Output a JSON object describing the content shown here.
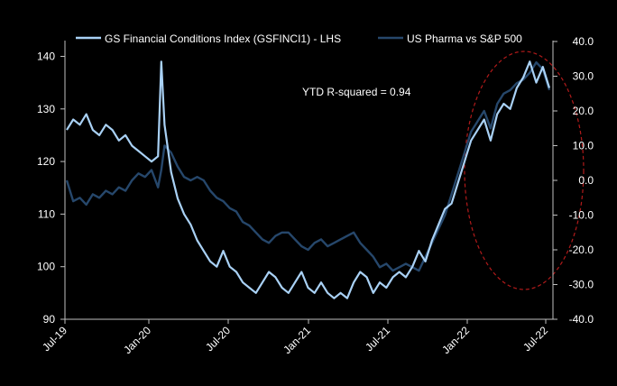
{
  "chart_data": {
    "type": "line",
    "title": "",
    "annotation": "YTD R-squared = 0.94",
    "x_ticks": [
      "Jul-19",
      "Jan-20",
      "Jul-20",
      "Jan-21",
      "Jul-21",
      "Jan-22",
      "Jul-22"
    ],
    "left_axis": {
      "ticks": [
        "90",
        "100",
        "110",
        "120",
        "130",
        "140"
      ],
      "ylim": [
        90,
        143
      ]
    },
    "right_axis": {
      "ticks": [
        "-40.0",
        "-30.0",
        "-20.0",
        "-10.0",
        "0.0",
        "10.0",
        "20.0",
        "30.0",
        "40.0"
      ],
      "ylim": [
        -40,
        40
      ]
    },
    "legend": {
      "position": "top"
    },
    "highlight": {
      "shape": "dashed-ellipse",
      "color": "#b11a1a",
      "region": "Jan-22 to Jul-22"
    },
    "series": [
      {
        "name": "GS Financial Conditions Index (GSFINCI1) - LHS",
        "axis": "left",
        "color": "#a9d1f5",
        "x": [
          0,
          0.5,
          1,
          1.5,
          2,
          2.5,
          3,
          3.5,
          4,
          4.5,
          5,
          5.5,
          6,
          6.5,
          7,
          7.25,
          7.5,
          8,
          8.5,
          9,
          9.5,
          10,
          10.5,
          11,
          11.5,
          12,
          12.5,
          13,
          13.5,
          14,
          14.5,
          15,
          15.5,
          16,
          16.5,
          17,
          17.5,
          18,
          18.5,
          19,
          19.5,
          20,
          20.5,
          21,
          21.5,
          22,
          22.5,
          23,
          23.5,
          24,
          24.5,
          25,
          25.5,
          26,
          26.5,
          27,
          27.5,
          28,
          28.5,
          29,
          29.5,
          30,
          30.5,
          31,
          31.5,
          32,
          32.5,
          33,
          33.5,
          34,
          34.5,
          35,
          35.5,
          36,
          36.5,
          37
        ],
        "values": [
          126,
          128,
          127,
          129,
          126,
          125,
          127,
          126,
          124,
          125,
          123,
          122,
          121,
          120,
          121,
          139,
          127,
          118,
          113,
          110,
          108,
          105,
          103,
          101,
          100,
          103,
          100,
          99,
          97,
          96,
          95,
          97,
          99,
          98,
          96,
          95,
          97,
          99,
          96,
          95,
          97,
          95,
          94,
          95,
          94,
          97,
          99,
          98,
          95,
          97,
          96,
          98,
          99,
          98,
          100,
          103,
          101,
          105,
          108,
          111,
          112,
          116,
          120,
          124,
          126,
          128,
          124,
          129,
          131,
          130,
          134,
          136,
          139,
          135,
          138,
          134
        ]
      },
      {
        "name": "US Pharma vs S&P 500",
        "axis": "right",
        "color": "#26476b",
        "x": [
          0,
          0.5,
          1,
          1.5,
          2,
          2.5,
          3,
          3.5,
          4,
          4.5,
          5,
          5.5,
          6,
          6.5,
          7,
          7.25,
          7.5,
          8,
          8.5,
          9,
          9.5,
          10,
          10.5,
          11,
          11.5,
          12,
          12.5,
          13,
          13.5,
          14,
          14.5,
          15,
          15.5,
          16,
          16.5,
          17,
          17.5,
          18,
          18.5,
          19,
          19.5,
          20,
          20.5,
          21,
          21.5,
          22,
          22.5,
          23,
          23.5,
          24,
          24.5,
          25,
          25.5,
          26,
          26.5,
          27,
          27.5,
          28,
          28.5,
          29,
          29.5,
          30,
          30.5,
          31,
          31.5,
          32,
          32.5,
          33,
          33.5,
          34,
          34.5,
          35,
          35.5,
          36,
          36.5,
          37
        ],
        "values": [
          0,
          -6,
          -5,
          -7,
          -4,
          -5,
          -3,
          -4,
          -2,
          -3,
          0,
          2,
          1,
          3,
          -2,
          3,
          10,
          8,
          4,
          1,
          0,
          1,
          0,
          -3,
          -5,
          -6,
          -8,
          -9,
          -12,
          -13,
          -15,
          -17,
          -18,
          -16,
          -15,
          -15,
          -17,
          -19,
          -20,
          -18,
          -17,
          -19,
          -18,
          -17,
          -16,
          -15,
          -18,
          -20,
          -22,
          -25,
          -24,
          -26,
          -25,
          -24,
          -25,
          -26,
          -22,
          -18,
          -14,
          -10,
          -4,
          2,
          8,
          14,
          17,
          20,
          15,
          22,
          25,
          26,
          28,
          29,
          31,
          34,
          32,
          26
        ]
      }
    ]
  }
}
